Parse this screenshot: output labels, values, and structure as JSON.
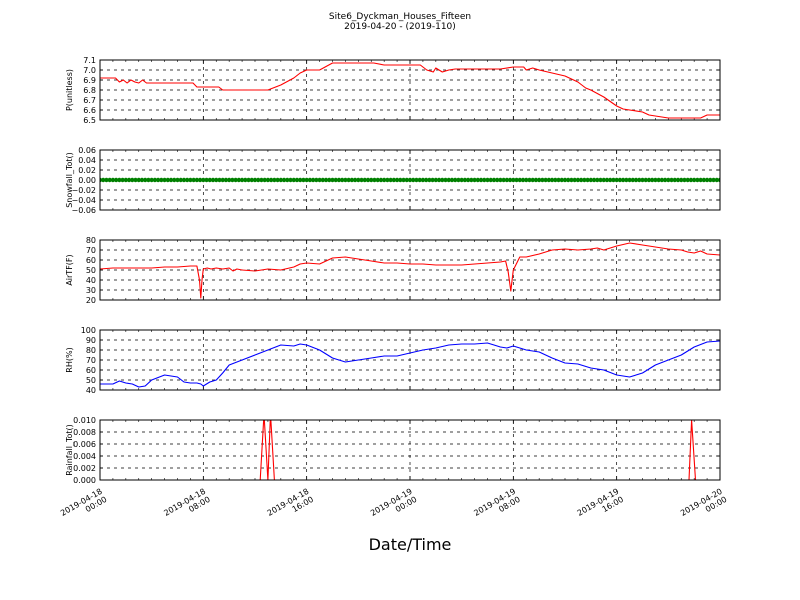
{
  "figure": {
    "title": "Site6_Dyckman_Houses_Fifteen",
    "subtitle": "2019-04-20 - (2019-110)",
    "xlabel": "Date/Time",
    "x_tick_labels": [
      [
        "2019-04-18",
        "00:00"
      ],
      [
        "2019-04-18",
        "08:00"
      ],
      [
        "2019-04-18",
        "16:00"
      ],
      [
        "2019-04-19",
        "00:00"
      ],
      [
        "2019-04-19",
        "08:00"
      ],
      [
        "2019-04-19",
        "16:00"
      ],
      [
        "2019-04-20",
        "00:00"
      ]
    ]
  },
  "chart_data": [
    {
      "type": "line",
      "ylabel": "P(unitless)",
      "ylim": [
        6.5,
        7.1
      ],
      "yticks": [
        "6.5",
        "6.6",
        "6.7",
        "6.8",
        "6.9",
        "7.0",
        "7.1"
      ],
      "xlim_hours": [
        0,
        48
      ],
      "grid": true,
      "color": "#ff0000",
      "x_hours": [
        0,
        1.2,
        1.5,
        1.8,
        2.1,
        2.4,
        2.7,
        3.0,
        3.3,
        3.6,
        4,
        6,
        7.2,
        7.5,
        8,
        9.2,
        9.5,
        10,
        11,
        12,
        12.5,
        13,
        14,
        15,
        15.5,
        16,
        16.5,
        17,
        18,
        19,
        20,
        21,
        21.2,
        22,
        23,
        24,
        24.8,
        25,
        25.3,
        25.8,
        26,
        26.5,
        27,
        27.5,
        28,
        29,
        30,
        31,
        32,
        32.5,
        32.8,
        33,
        33.5,
        34,
        35,
        36,
        37,
        37.6,
        38,
        39,
        40,
        40.5,
        41,
        42,
        42.5,
        43,
        44,
        45,
        46,
        46.5,
        47,
        48
      ],
      "values": [
        6.92,
        6.92,
        6.88,
        6.9,
        6.87,
        6.9,
        6.88,
        6.87,
        6.9,
        6.87,
        6.87,
        6.87,
        6.87,
        6.83,
        6.83,
        6.83,
        6.8,
        6.8,
        6.8,
        6.8,
        6.8,
        6.8,
        6.85,
        6.92,
        6.97,
        7.0,
        7.0,
        7.0,
        7.07,
        7.07,
        7.07,
        7.07,
        7.07,
        7.05,
        7.05,
        7.05,
        7.05,
        7.03,
        7.0,
        6.98,
        7.02,
        6.98,
        7.0,
        7.01,
        7.01,
        7.01,
        7.01,
        7.01,
        7.03,
        7.03,
        7.03,
        7.0,
        7.02,
        7.0,
        6.97,
        6.94,
        6.88,
        6.82,
        6.8,
        6.73,
        6.64,
        6.61,
        6.6,
        6.58,
        6.55,
        6.54,
        6.52,
        6.52,
        6.52,
        6.52,
        6.55,
        6.55
      ]
    },
    {
      "type": "scatter",
      "ylabel": "Snowfall_Tot()",
      "ylim": [
        -0.06,
        0.06
      ],
      "yticks": [
        "−0.06",
        "−0.04",
        "−0.02",
        "0.00",
        "0.02",
        "0.04",
        "0.06"
      ],
      "xlim_hours": [
        0,
        48
      ],
      "grid": true,
      "color": "#008000",
      "constant_value": 0.0,
      "sample_interval_hours": 0.25
    },
    {
      "type": "line",
      "ylabel": "AirTF(F)",
      "ylim": [
        20,
        80
      ],
      "yticks": [
        "20",
        "30",
        "40",
        "50",
        "60",
        "70",
        "80"
      ],
      "xlim_hours": [
        0,
        48
      ],
      "grid": true,
      "color": "#ff0000",
      "x_hours": [
        0,
        1,
        2,
        3,
        4,
        5,
        6,
        7,
        7.5,
        7.7,
        7.8,
        7.9,
        8.0,
        8.3,
        8.6,
        9,
        9.5,
        10,
        10.3,
        10.6,
        11,
        12,
        13,
        14,
        15,
        15.5,
        16,
        17,
        18,
        19,
        20,
        21,
        22,
        23,
        24,
        25,
        26,
        27,
        28,
        29,
        30,
        31,
        31.4,
        31.6,
        31.8,
        32,
        32.5,
        33,
        34,
        35,
        36,
        37,
        38,
        38.5,
        39,
        40,
        41,
        42,
        43,
        44,
        45,
        45.5,
        46,
        46.5,
        47,
        48
      ],
      "values": [
        51,
        52,
        52,
        52,
        52,
        53,
        53,
        54,
        54,
        40,
        22,
        40,
        51,
        52,
        51,
        52,
        51,
        52,
        49,
        51,
        50,
        49,
        51,
        50,
        53,
        56,
        57,
        56,
        62,
        63,
        61,
        59,
        57,
        57,
        56,
        56,
        55,
        55,
        55,
        56,
        57,
        58,
        59,
        48,
        29,
        50,
        63,
        63,
        66,
        70,
        71,
        70,
        71,
        72,
        70,
        74,
        77,
        75,
        73,
        71,
        70,
        68,
        67,
        69,
        66,
        65
      ]
    },
    {
      "type": "line",
      "ylabel": "RH(%)",
      "ylim": [
        40,
        100
      ],
      "yticks": [
        "40",
        "50",
        "60",
        "70",
        "80",
        "90",
        "100"
      ],
      "xlim_hours": [
        0,
        48
      ],
      "grid": true,
      "color": "#0000ff",
      "x_hours": [
        0,
        1,
        1.5,
        2,
        2.5,
        3,
        3.5,
        4,
        5,
        6,
        6.5,
        7,
        7.5,
        7.8,
        8,
        8.5,
        9,
        9.5,
        10,
        11,
        12,
        13,
        14,
        15,
        15.5,
        16,
        17,
        18,
        19,
        20,
        21,
        22,
        23,
        24,
        25,
        26,
        27,
        28,
        29,
        30,
        30.5,
        31,
        31.5,
        32,
        33,
        34,
        35,
        36,
        37,
        38,
        39,
        40,
        41,
        42,
        43,
        44,
        45,
        46,
        47,
        48
      ],
      "values": [
        46,
        46,
        49,
        47,
        46,
        43,
        44,
        50,
        55,
        53,
        48,
        47,
        47,
        46,
        44,
        48,
        50,
        57,
        65,
        70,
        75,
        80,
        85,
        84,
        86,
        85,
        80,
        72,
        68,
        70,
        72,
        74,
        74,
        77,
        80,
        82,
        85,
        86,
        86,
        87,
        85,
        83,
        82,
        84,
        80,
        78,
        72,
        67,
        66,
        62,
        60,
        55,
        53,
        57,
        65,
        70,
        75,
        83,
        88,
        89
      ]
    },
    {
      "type": "line",
      "ylabel": "Rainfall_Tot()",
      "ylim": [
        0.0,
        0.01
      ],
      "yticks": [
        "0.000",
        "0.002",
        "0.004",
        "0.006",
        "0.008",
        "0.010"
      ],
      "xlim_hours": [
        0,
        48
      ],
      "grid": true,
      "color": "#ff0000",
      "x_hours": [
        0,
        12.4,
        12.7,
        13.0,
        13.2,
        13.5,
        45.6,
        45.8,
        46.1,
        48
      ],
      "values": [
        0,
        0,
        0.011,
        0,
        0.011,
        0,
        0,
        0.01,
        0,
        0
      ]
    }
  ]
}
